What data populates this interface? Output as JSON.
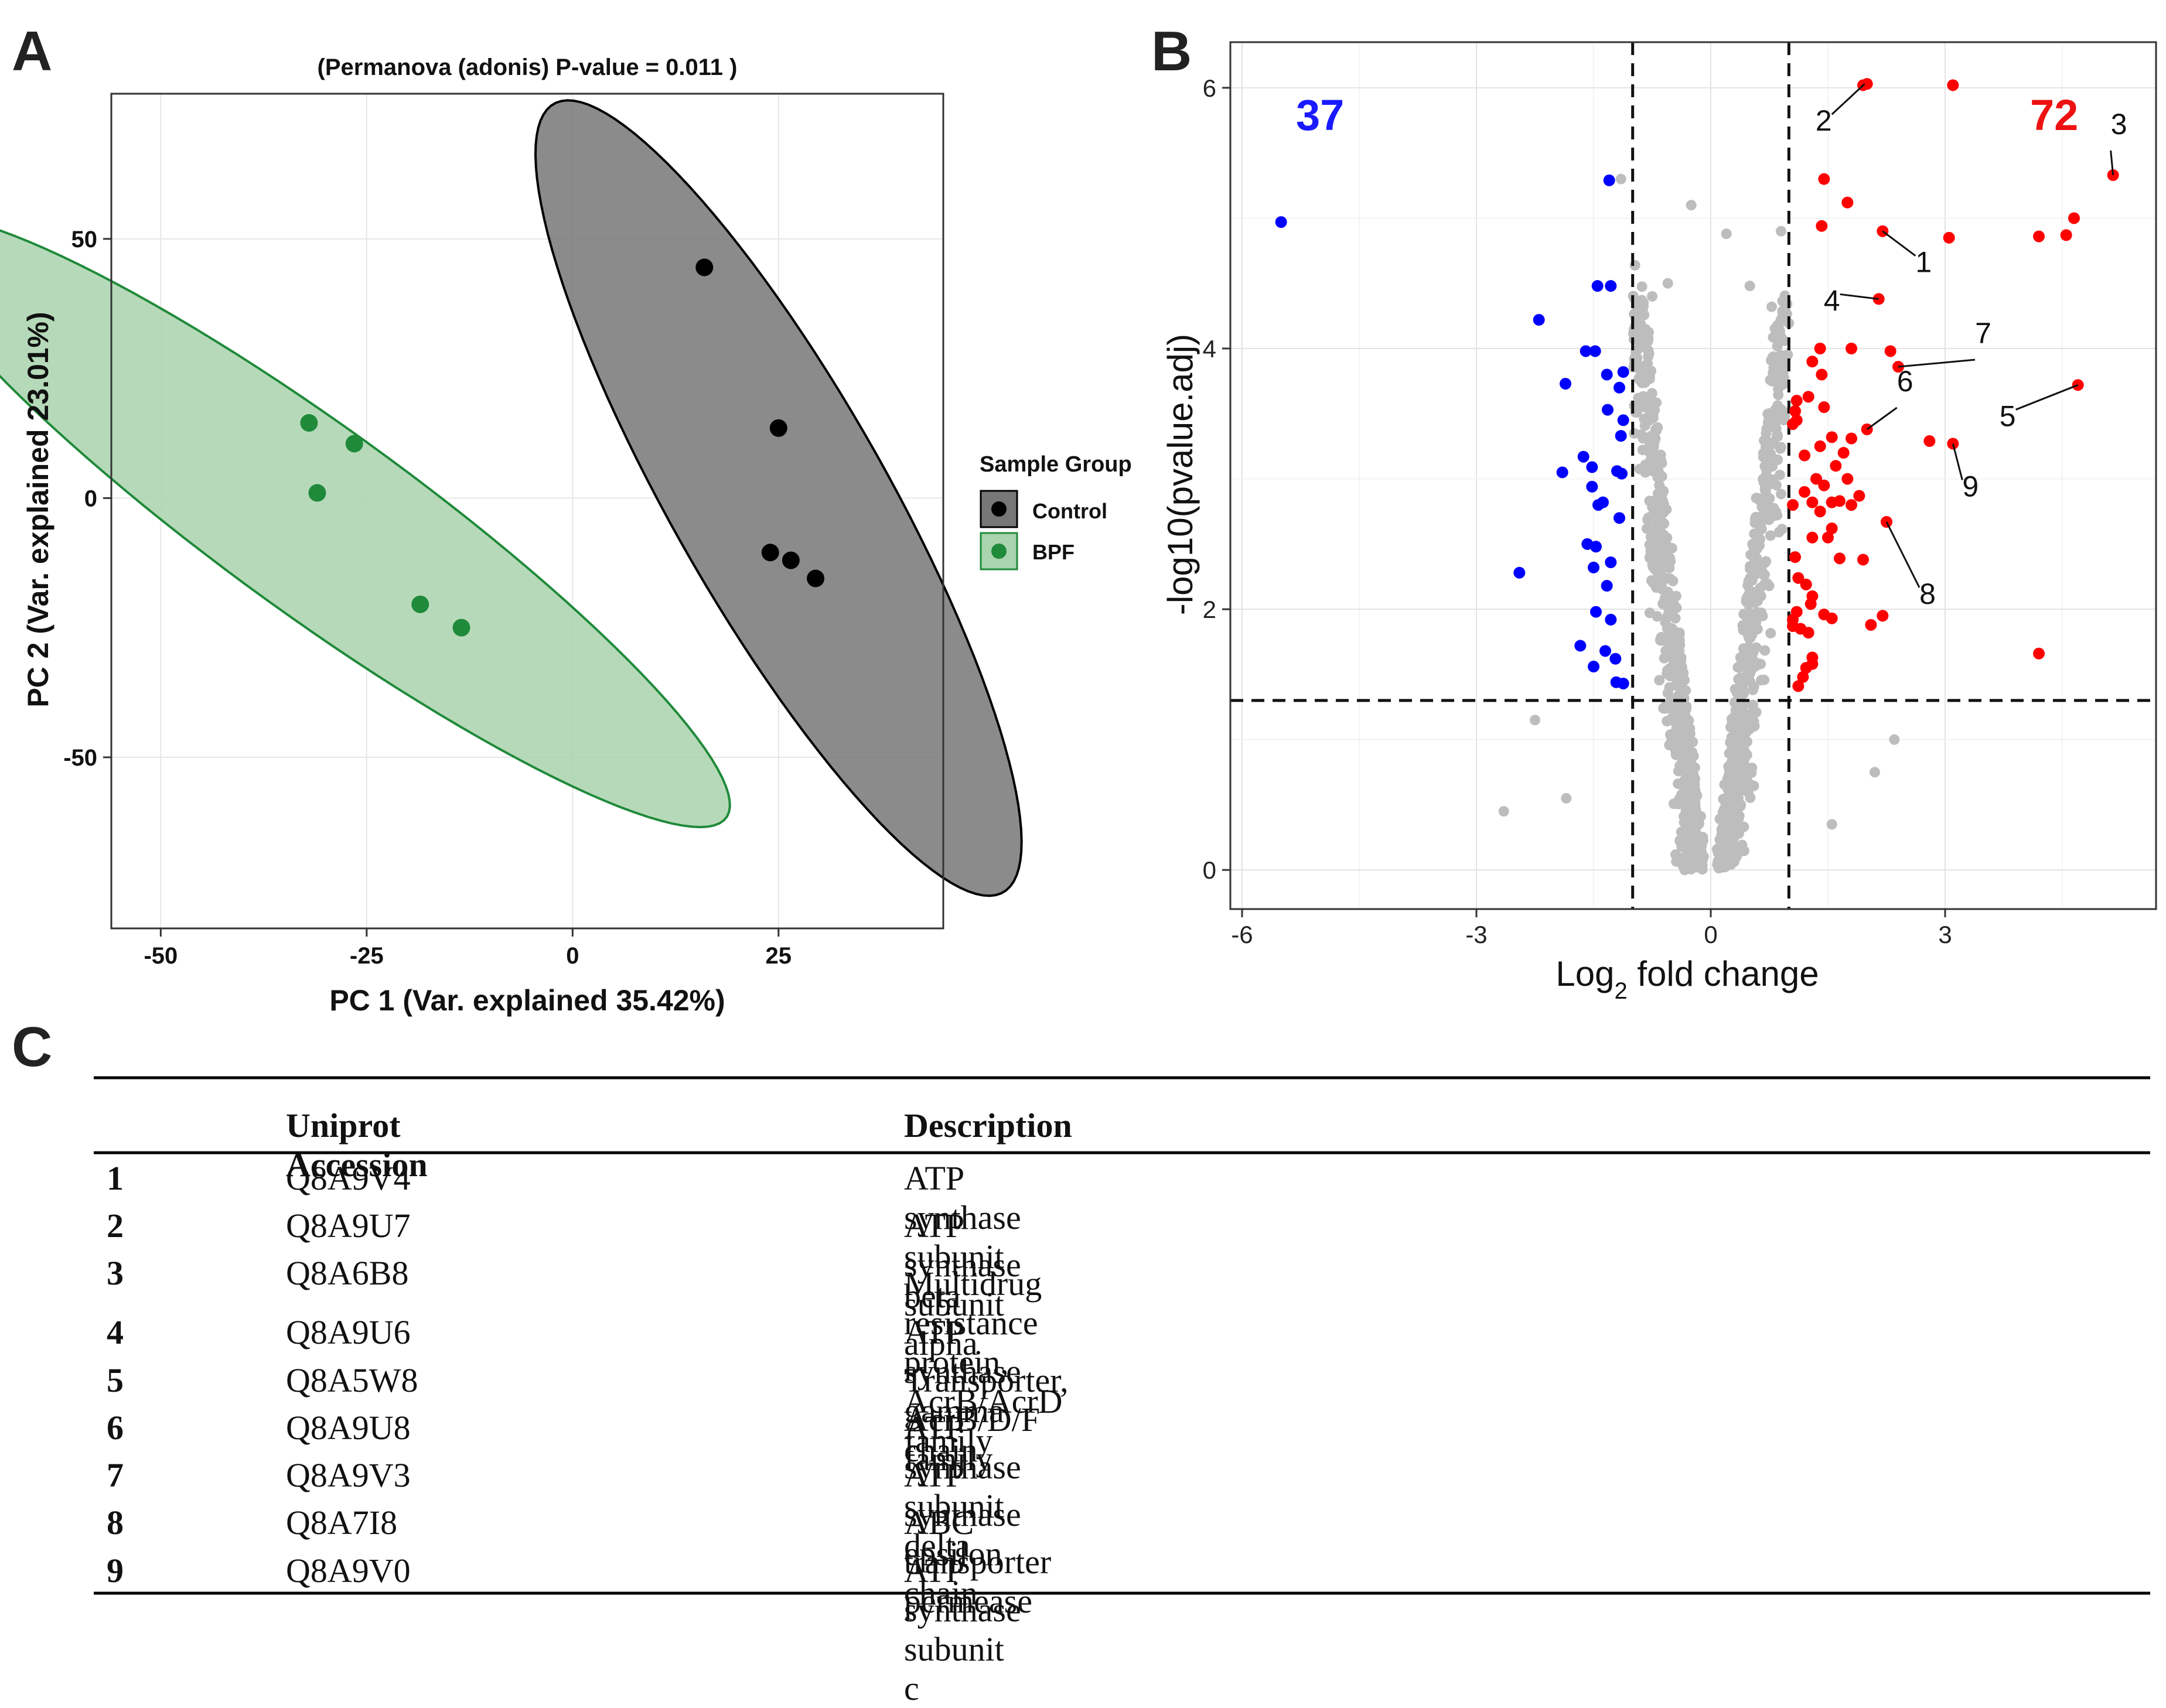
{
  "panel_labels": {
    "a": "A",
    "b": "B",
    "c": "C"
  },
  "chart_data": [
    {
      "type": "scatter",
      "title": "(Permanova (adonis) P-value = 0.011 )",
      "xlabel": "PC 1 (Var. explained 35.42%)",
      "ylabel": "PC 2 (Var. explained 23.01%)",
      "xlim": [
        -56,
        45
      ],
      "ylim": [
        -83,
        78
      ],
      "xticks": [
        -50,
        -25,
        0,
        25
      ],
      "yticks": [
        -50,
        0,
        50
      ],
      "tick_labels_x": [
        "-50",
        "-25",
        "0",
        "25"
      ],
      "tick_labels_y": [
        "-50",
        "0",
        "50"
      ],
      "legend": {
        "title": "Sample Group",
        "position": "right"
      },
      "series": [
        {
          "name": "Control",
          "color": "#000000",
          "fill": "#777777",
          "points": [
            [
              16,
              44.5
            ],
            [
              25,
              13.5
            ],
            [
              24,
              -10.5
            ],
            [
              26.5,
              -12
            ],
            [
              29.5,
              -15.5
            ]
          ],
          "ellipse": {
            "center": [
              25,
              0
            ],
            "semi_major": 81,
            "semi_minor": 14,
            "angle_deg": -71
          }
        },
        {
          "name": "BPF",
          "color": "#1f8a3a",
          "fill": "#a9d4ad",
          "points": [
            [
              -32,
              14.5
            ],
            [
              -26.5,
              10.5
            ],
            [
              -31,
              1
            ],
            [
              -18.5,
              -20.5
            ],
            [
              -13.5,
              -25
            ]
          ],
          "ellipse": {
            "center": [
              -31,
              -4.5
            ],
            "semi_major": 76,
            "semi_minor": 14.5,
            "angle_deg": -50
          }
        }
      ]
    },
    {
      "type": "scatter",
      "title": "",
      "xlabel": "Log2 fold change",
      "ylabel": "-log10(pvalue.adj)",
      "xlim": [
        -6.15,
        5.7
      ],
      "ylim": [
        -0.3,
        6.35
      ],
      "xticks": [
        -6,
        -3,
        0,
        3
      ],
      "yticks": [
        0,
        2,
        4,
        6
      ],
      "tick_labels_x": [
        "-6",
        "-3",
        "0",
        "3"
      ],
      "tick_labels_y": [
        "0",
        "2",
        "4",
        "6"
      ],
      "thresholds": {
        "fold_change": [
          -1,
          1
        ],
        "pvalue_adj_log10": 1.3
      },
      "counts": {
        "down": "37",
        "up": "72"
      },
      "colors": {
        "down": "#0000ff",
        "up": "#ff0000",
        "ns": "#bdbdbd"
      },
      "down_points": [
        [
          -5.5,
          4.97
        ],
        [
          -1.3,
          5.29
        ],
        [
          -1.45,
          4.48
        ],
        [
          -1.28,
          4.48
        ],
        [
          -2.2,
          4.22
        ],
        [
          -1.6,
          3.98
        ],
        [
          -1.48,
          3.98
        ],
        [
          -1.33,
          3.8
        ],
        [
          -1.12,
          3.82
        ],
        [
          -1.86,
          3.73
        ],
        [
          -1.17,
          3.7
        ],
        [
          -1.32,
          3.53
        ],
        [
          -1.12,
          3.45
        ],
        [
          -1.15,
          3.33
        ],
        [
          -1.63,
          3.17
        ],
        [
          -1.52,
          3.09
        ],
        [
          -1.2,
          3.06
        ],
        [
          -1.14,
          3.04
        ],
        [
          -1.9,
          3.05
        ],
        [
          -1.52,
          2.94
        ],
        [
          -1.44,
          2.8
        ],
        [
          -1.38,
          2.82
        ],
        [
          -1.17,
          2.7
        ],
        [
          -1.58,
          2.5
        ],
        [
          -1.47,
          2.48
        ],
        [
          -1.28,
          2.36
        ],
        [
          -1.5,
          2.32
        ],
        [
          -2.45,
          2.28
        ],
        [
          -1.33,
          2.18
        ],
        [
          -1.47,
          1.98
        ],
        [
          -1.28,
          1.92
        ],
        [
          -1.67,
          1.72
        ],
        [
          -1.35,
          1.68
        ],
        [
          -1.22,
          1.62
        ],
        [
          -1.5,
          1.56
        ],
        [
          -1.21,
          1.44
        ],
        [
          -1.12,
          1.43
        ]
      ],
      "up_points": [
        [
          1.95,
          6.02
        ],
        [
          2.0,
          6.03
        ],
        [
          3.1,
          6.02
        ],
        [
          5.15,
          5.33
        ],
        [
          1.45,
          5.3
        ],
        [
          1.75,
          5.12
        ],
        [
          1.42,
          4.94
        ],
        [
          2.2,
          4.9
        ],
        [
          3.05,
          4.85
        ],
        [
          4.2,
          4.86
        ],
        [
          4.55,
          4.87
        ],
        [
          4.65,
          5.0
        ],
        [
          2.15,
          4.38
        ],
        [
          1.4,
          4.0
        ],
        [
          1.8,
          4.0
        ],
        [
          2.3,
          3.98
        ],
        [
          2.4,
          3.86
        ],
        [
          1.3,
          3.9
        ],
        [
          1.42,
          3.8
        ],
        [
          1.1,
          3.6
        ],
        [
          1.25,
          3.63
        ],
        [
          1.45,
          3.55
        ],
        [
          4.7,
          3.72
        ],
        [
          1.08,
          3.52
        ],
        [
          1.1,
          3.45
        ],
        [
          1.05,
          3.42
        ],
        [
          2.0,
          3.38
        ],
        [
          1.55,
          3.32
        ],
        [
          1.8,
          3.31
        ],
        [
          2.8,
          3.29
        ],
        [
          3.1,
          3.27
        ],
        [
          1.4,
          3.25
        ],
        [
          1.7,
          3.2
        ],
        [
          1.2,
          3.18
        ],
        [
          1.6,
          3.1
        ],
        [
          1.35,
          3.0
        ],
        [
          1.75,
          3.0
        ],
        [
          1.45,
          2.95
        ],
        [
          1.2,
          2.9
        ],
        [
          1.9,
          2.87
        ],
        [
          1.3,
          2.82
        ],
        [
          1.05,
          2.8
        ],
        [
          1.55,
          2.82
        ],
        [
          1.65,
          2.83
        ],
        [
          1.8,
          2.8
        ],
        [
          1.4,
          2.75
        ],
        [
          1.55,
          2.62
        ],
        [
          2.25,
          2.67
        ],
        [
          1.3,
          2.55
        ],
        [
          1.5,
          2.55
        ],
        [
          1.65,
          2.39
        ],
        [
          1.08,
          2.4
        ],
        [
          1.95,
          2.38
        ],
        [
          1.12,
          2.24
        ],
        [
          1.22,
          2.19
        ],
        [
          1.3,
          2.1
        ],
        [
          1.28,
          2.04
        ],
        [
          1.1,
          1.98
        ],
        [
          1.45,
          1.96
        ],
        [
          2.2,
          1.95
        ],
        [
          1.05,
          1.92
        ],
        [
          1.55,
          1.93
        ],
        [
          2.05,
          1.88
        ],
        [
          1.05,
          1.87
        ],
        [
          1.15,
          1.85
        ],
        [
          1.25,
          1.82
        ],
        [
          4.2,
          1.66
        ],
        [
          1.3,
          1.63
        ],
        [
          1.22,
          1.55
        ],
        [
          1.3,
          1.58
        ],
        [
          1.18,
          1.48
        ],
        [
          1.12,
          1.41
        ]
      ],
      "annotations": [
        {
          "label": "2",
          "point": [
            1.97,
            6.03
          ]
        },
        {
          "label": "3",
          "point": [
            5.15,
            5.33
          ]
        },
        {
          "label": "1",
          "point": [
            2.2,
            4.9
          ]
        },
        {
          "label": "4",
          "point": [
            2.15,
            4.38
          ]
        },
        {
          "label": "7",
          "point": [
            2.4,
            3.86
          ]
        },
        {
          "label": "6",
          "point": [
            2.0,
            3.38
          ]
        },
        {
          "label": "5",
          "point": [
            4.7,
            3.72
          ]
        },
        {
          "label": "9",
          "point": [
            3.1,
            3.27
          ]
        },
        {
          "label": "8",
          "point": [
            2.25,
            2.67
          ]
        }
      ]
    }
  ],
  "table": {
    "headers": [
      "",
      "Uniprot Accession",
      "Description"
    ],
    "rows": [
      [
        "1",
        "Q8A9V4",
        "ATP synthase subunit beta"
      ],
      [
        "2",
        "Q8A9U7",
        "ATP synthase subunit alpha"
      ],
      [
        "3",
        "Q8A6B8",
        "Multidrug resistance protein, AcrB/AcrD family"
      ],
      [
        "4",
        "Q8A9U6",
        "ATP synthase gamma chain"
      ],
      [
        "5",
        "Q8A5W8",
        "Transporter, AcrB/D/F family"
      ],
      [
        "6",
        "Q8A9U8",
        "ATP synthase subunit delta"
      ],
      [
        "7",
        "Q8A9V3",
        "ATP synthase epsilon chain"
      ],
      [
        "8",
        "Q8A7I8",
        "ABC transporter permease"
      ],
      [
        "9",
        "Q8A9V0",
        "ATP synthase subunit c"
      ]
    ]
  }
}
